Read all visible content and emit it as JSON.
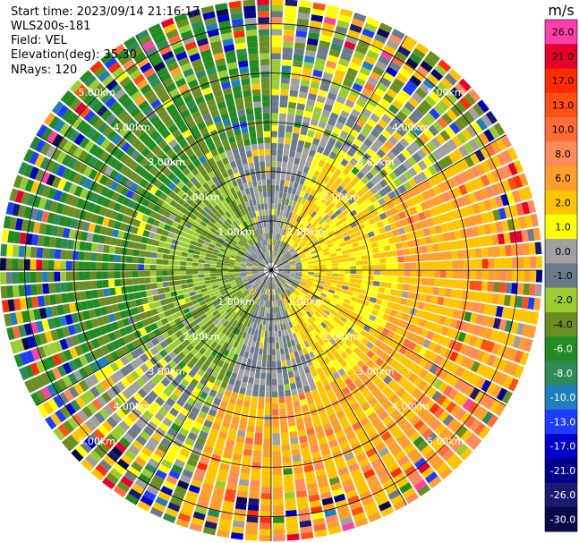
{
  "info": {
    "start_time": "Start time: 2023/09/14 21:16:17",
    "instrument": "WLS200s-181",
    "field": "Field: VEL",
    "elevation": "Elevation(deg): 35.30",
    "nrays": "NRays: 120"
  },
  "chart_data": {
    "type": "heatmap",
    "projection": "polar-ppi",
    "field": "VEL",
    "units": "m/s",
    "n_rays": 120,
    "elevation_deg": 35.3,
    "rings_km": [
      1.0,
      2.0,
      3.0,
      4.0,
      5.0
    ],
    "ring_labels": [
      "1.00km",
      "2.00km",
      "3.00km",
      "4.00km",
      "5.00km"
    ],
    "max_range_km": 5.5,
    "spoke_angles_deg": [
      0,
      30,
      60,
      90,
      120,
      150,
      180,
      210,
      240,
      270,
      300,
      330
    ],
    "colorbar": {
      "unit_label": "m/s",
      "ticks": [
        "26.0",
        "21.0",
        "17.0",
        "13.0",
        "10.0",
        "8.0",
        "6.0",
        "2.0",
        "1.0",
        "0.0",
        "-1.0",
        "-2.0",
        "-4.0",
        "-6.0",
        "-8.0",
        "-10.0",
        "-13.0",
        "-17.0",
        "-21.0",
        "-26.0",
        "-30.0"
      ],
      "colors": [
        "#ff3fa9",
        "#e8002d",
        "#ff2a00",
        "#ff4f14",
        "#ff6a3a",
        "#ff8a5a",
        "#ff9e2a",
        "#ffc400",
        "#ffff00",
        "#a0a0a0",
        "#6c7b8b",
        "#9acd32",
        "#6b8e23",
        "#228b22",
        "#2e8b57",
        "#1f7ec0",
        "#1e3cff",
        "#0000cd",
        "#00008b",
        "#1a1a70",
        "#0a0a4a"
      ]
    },
    "regions": [
      {
        "range_km": [
          0.0,
          0.6
        ],
        "sector_deg": [
          0,
          360
        ],
        "dominant_ms": 0.0
      },
      {
        "range_km": [
          0.6,
          2.5
        ],
        "sector_deg": [
          200,
          340
        ],
        "dominant_ms": -2.0
      },
      {
        "range_km": [
          0.6,
          2.5
        ],
        "sector_deg": [
          20,
          160
        ],
        "dominant_ms": 2.0
      },
      {
        "range_km": [
          2.5,
          5.5
        ],
        "sector_deg": [
          240,
          360
        ],
        "dominant_ms": -4.0
      },
      {
        "range_km": [
          2.5,
          5.5
        ],
        "sector_deg": [
          60,
          200
        ],
        "dominant_ms": 6.0
      }
    ]
  }
}
